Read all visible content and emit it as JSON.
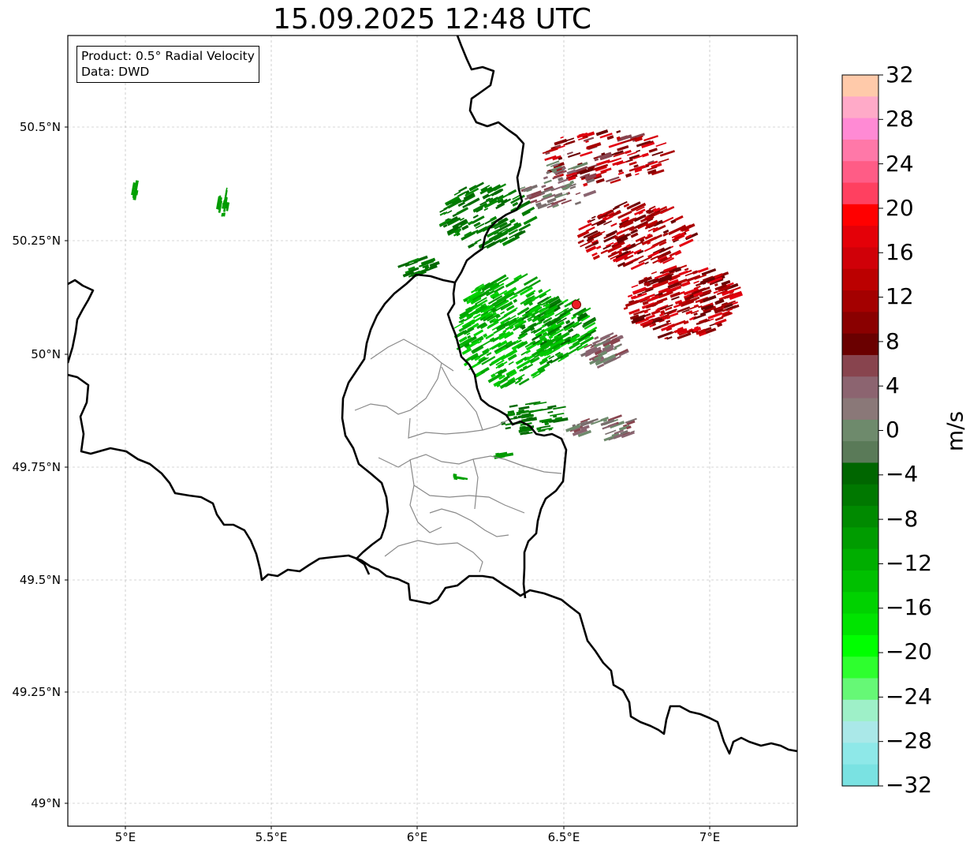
{
  "title": "15.09.2025 12:48 UTC",
  "info": {
    "product": "Product: 0.5° Radial Velocity",
    "data_source": "Data: DWD"
  },
  "axes": {
    "lon_labels": [
      "5°E",
      "5.5°E",
      "6°E",
      "6.5°E",
      "7°E"
    ],
    "lat_labels": [
      "50.5°N",
      "50.25°N",
      "50°N",
      "49.75°N",
      "49.5°N",
      "49.25°N",
      "49°N"
    ],
    "lon_range": [
      4.8,
      7.3
    ],
    "lat_range": [
      48.95,
      50.7
    ]
  },
  "radar_site": {
    "lon": 6.55,
    "lat": 50.11,
    "color": "#ee1c24"
  },
  "colorbar": {
    "unit": "m/s",
    "ticks": [
      "32",
      "28",
      "24",
      "20",
      "16",
      "12",
      "8",
      "4",
      "0",
      "−4",
      "−8",
      "−12",
      "−16",
      "−20",
      "−24",
      "−28",
      "−32"
    ],
    "range": [
      -32,
      32
    ],
    "colors_top_to_bottom": [
      "#ffcaaa",
      "#ffaac8",
      "#ff8ad4",
      "#ff78a8",
      "#ff5c86",
      "#ff4060",
      "#ff0000",
      "#e40008",
      "#d00008",
      "#bb0000",
      "#a40000",
      "#8a0000",
      "#6a0000",
      "#88444e",
      "#8c6470",
      "#8a7878",
      "#6e8a6c",
      "#5a7a58",
      "#006600",
      "#007800",
      "#008a00",
      "#009c00",
      "#00ae00",
      "#00c000",
      "#00d200",
      "#00e400",
      "#00ff00",
      "#2eff2e",
      "#66f876",
      "#9ef0c8",
      "#aae8e8",
      "#8ee8e8",
      "#7ae2e2"
    ]
  }
}
